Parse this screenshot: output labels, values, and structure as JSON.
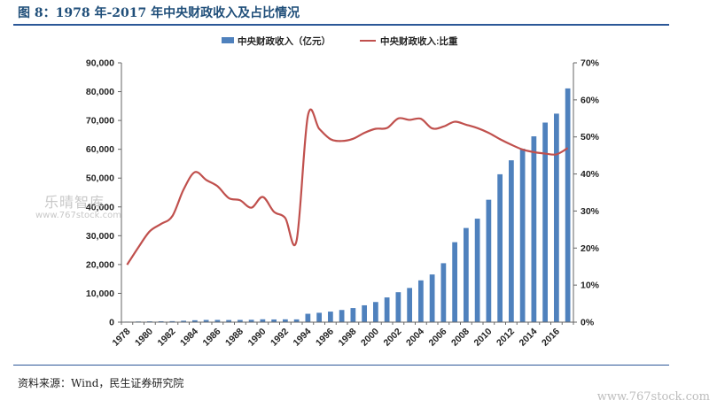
{
  "header": {
    "title": "图 8：1978 年-2017 年中央财政收入及占比情况"
  },
  "footer": {
    "source": "资料来源：Wind，民生证券研究院"
  },
  "watermark": {
    "main": "乐晴智库",
    "sub": "www.767stock.com",
    "corner": "www.767stock.com"
  },
  "colors": {
    "bar": "#4f81bd",
    "line": "#c0504d",
    "rule": "#2b5797",
    "title": "#1f4e79"
  },
  "chart_data": {
    "type": "bar+line",
    "title": "图 8：1978 年-2017 年中央财政收入及占比情况",
    "legend_position": "top-center",
    "grid": false,
    "x": [
      1978,
      1979,
      1980,
      1981,
      1982,
      1983,
      1984,
      1985,
      1986,
      1987,
      1988,
      1989,
      1990,
      1991,
      1992,
      1993,
      1994,
      1995,
      1996,
      1997,
      1998,
      1999,
      2000,
      2001,
      2002,
      2003,
      2004,
      2005,
      2006,
      2007,
      2008,
      2009,
      2010,
      2011,
      2012,
      2013,
      2014,
      2015,
      2016,
      2017
    ],
    "x_tick_labels": [
      "1978",
      "1980",
      "1982",
      "1984",
      "1986",
      "1988",
      "1990",
      "1992",
      "1994",
      "1996",
      "1998",
      "2000",
      "2002",
      "2004",
      "2006",
      "2008",
      "2010",
      "2012",
      "2014",
      "2016"
    ],
    "y_left": {
      "ylim": [
        0,
        90000
      ],
      "ticks": [
        "0",
        "10,000",
        "20,000",
        "30,000",
        "40,000",
        "50,000",
        "60,000",
        "70,000",
        "80,000",
        "90,000"
      ]
    },
    "y_right": {
      "ylim": [
        0,
        70
      ],
      "ticks": [
        "0%",
        "10%",
        "20%",
        "30%",
        "40%",
        "50%",
        "60%",
        "70%"
      ]
    },
    "series": [
      {
        "name": "中央财政收入（亿元）",
        "type": "bar",
        "axis": "left",
        "values": [
          176,
          232,
          285,
          312,
          347,
          490,
          665,
          770,
          778,
          736,
          775,
          823,
          992,
          938,
          980,
          958,
          2907,
          3257,
          3661,
          4227,
          4892,
          5849,
          6989,
          8583,
          10389,
          11865,
          14503,
          16549,
          20457,
          27749,
          32681,
          35916,
          42489,
          51327,
          56175,
          60198,
          64493,
          69267,
          72366,
          81123
        ]
      },
      {
        "name": "中央财政收入:比重",
        "type": "line",
        "axis": "right",
        "values": [
          15.5,
          20.2,
          24.5,
          26.5,
          28.6,
          35.8,
          40.5,
          38.4,
          36.7,
          33.5,
          32.9,
          30.9,
          33.8,
          29.8,
          28.1,
          22.0,
          55.7,
          52.2,
          49.4,
          48.9,
          49.5,
          51.1,
          52.2,
          52.4,
          55.0,
          54.6,
          54.9,
          52.3,
          52.8,
          54.1,
          53.3,
          52.4,
          51.1,
          49.4,
          47.9,
          46.6,
          45.9,
          45.5,
          45.3,
          47.0
        ]
      }
    ]
  }
}
